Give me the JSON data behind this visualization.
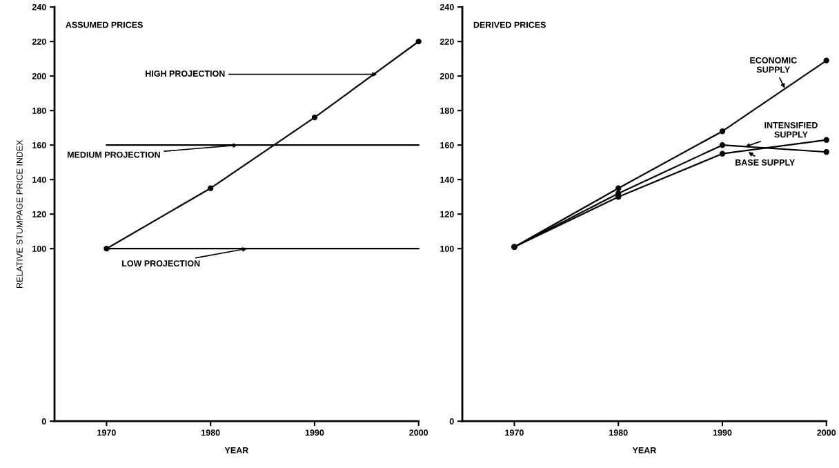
{
  "chart_data": [
    {
      "type": "line",
      "title": "ASSUMED PRICES",
      "xlabel": "YEAR",
      "ylabel": "RELATIVE STUMPAGE PRICE INDEX",
      "x": [
        1970,
        1980,
        1990,
        2000
      ],
      "series": [
        {
          "color": "#000000",
          "marker": "circle",
          "values": [
            100,
            135,
            176,
            220
          ]
        },
        {
          "color": "#000000",
          "marker": "none",
          "values": [
            160,
            160,
            160,
            160
          ]
        },
        {
          "color": "#000000",
          "marker": "none",
          "values": [
            100,
            100,
            100,
            100
          ]
        }
      ],
      "xlim": [
        1965,
        2000
      ],
      "xticks": [
        1970,
        1980,
        1990,
        2000
      ],
      "ylim": [
        0,
        240
      ],
      "yticks": [
        0,
        100,
        120,
        140,
        160,
        180,
        200,
        220,
        240
      ],
      "grid": false,
      "legend": false,
      "line_style": "solid",
      "annotations": [
        {
          "text": "HIGH PROJECTION",
          "x": 1996,
          "y": 201
        },
        {
          "text": "MEDIUM PROJECTION",
          "x": 1982.6,
          "y": 160
        },
        {
          "text": "LOW PROJECTION",
          "x": 1983.5,
          "y": 100
        }
      ]
    },
    {
      "type": "line",
      "title": "DERIVED PRICES",
      "xlabel": "YEAR",
      "x": [
        1970,
        1980,
        1990,
        2000
      ],
      "series": [
        {
          "color": "#000000",
          "marker": "circle",
          "values": [
            101,
            135,
            168,
            209
          ]
        },
        {
          "color": "#000000",
          "marker": "circle",
          "values": [
            101,
            132,
            160,
            156
          ]
        },
        {
          "color": "#000000",
          "marker": "circle",
          "values": [
            101,
            130,
            155,
            163
          ]
        }
      ],
      "xlim": [
        1965,
        2000
      ],
      "xticks": [
        1970,
        1980,
        1990,
        2000
      ],
      "ylim": [
        0,
        240
      ],
      "yticks": [
        0,
        100,
        120,
        140,
        160,
        180,
        200,
        220,
        240
      ],
      "grid": false,
      "legend": false,
      "line_style": "solid",
      "annotations": [
        {
          "text": "ECONOMIC\nSUPPLY",
          "x": 1996,
          "y": 193
        },
        {
          "text": "INTENSIFIED\nSUPPLY",
          "x": 1992.2,
          "y": 159
        },
        {
          "text": "BASE SUPPLY",
          "x": 1992.5,
          "y": 156
        }
      ]
    }
  ]
}
